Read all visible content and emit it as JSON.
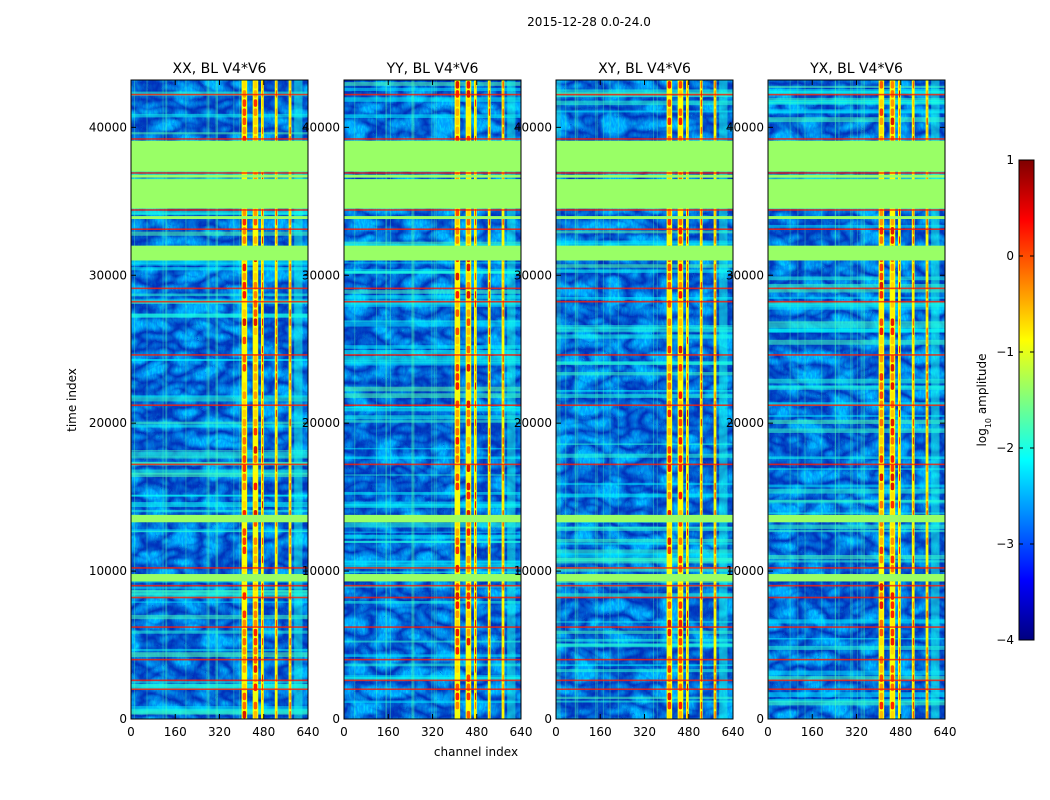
{
  "figure_title": "2015-12-28 0.0-24.0",
  "colors": {
    "green_band": "#99ff66",
    "jet_stops": [
      "#00007f",
      "#0000ff",
      "#007fff",
      "#00ffff",
      "#7fff7f",
      "#ffff00",
      "#ff7f00",
      "#ff0000",
      "#7f0000"
    ]
  },
  "chart_data": {
    "type": "heatmap",
    "title": "2015-12-28 0.0-24.0",
    "xlabel": "channel index",
    "ylabel": "time index",
    "xlim": [
      0,
      640
    ],
    "ylim": [
      0,
      43200
    ],
    "x_ticks": [
      "0",
      "160",
      "320",
      "480",
      "640"
    ],
    "x_tick_values": [
      0,
      160,
      320,
      480,
      640
    ],
    "y_ticks": [
      "0",
      "10000",
      "20000",
      "30000",
      "40000"
    ],
    "y_tick_values": [
      0,
      10000,
      20000,
      30000,
      40000
    ],
    "panels": [
      {
        "title": "XX, BL V4*V6",
        "polarization": "XX",
        "baseline": "V4*V6"
      },
      {
        "title": "YY, BL V4*V6",
        "polarization": "YY",
        "baseline": "V4*V6"
      },
      {
        "title": "XY, BL V4*V6",
        "polarization": "XY",
        "baseline": "V4*V6"
      },
      {
        "title": "YX, BL V4*V6",
        "polarization": "YX",
        "baseline": "V4*V6"
      }
    ],
    "flagged_time_ranges": [
      [
        31000,
        32000
      ],
      [
        34500,
        36500
      ],
      [
        37000,
        39000
      ],
      [
        13300,
        13800
      ],
      [
        9300,
        9800
      ]
    ],
    "rfi_channel_ranges": [
      [
        400,
        420
      ],
      [
        440,
        460
      ],
      [
        470,
        480
      ],
      [
        520,
        530
      ],
      [
        570,
        580
      ]
    ],
    "colorbar": {
      "label": "log₁₀ amplitude",
      "label_base": "log",
      "label_sub": "10",
      "label_rest": " amplitude",
      "range": [
        -4,
        1
      ],
      "ticks": [
        "−4",
        "−3",
        "−2",
        "−1",
        "0",
        "1"
      ],
      "tick_values": [
        -4,
        -3,
        -2,
        -1,
        0,
        1
      ],
      "colormap": "jet"
    }
  }
}
